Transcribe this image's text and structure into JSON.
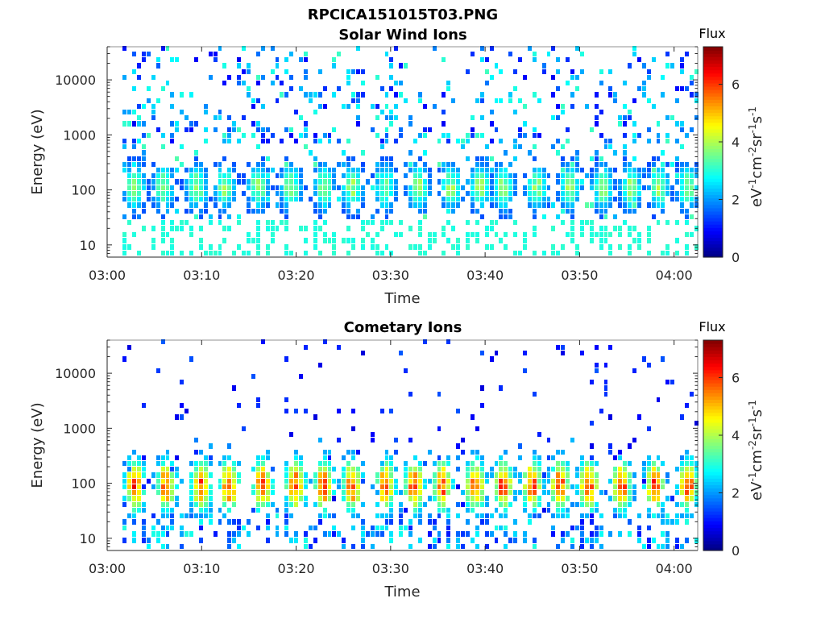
{
  "figure_title": "RPCICA151015T03.PNG",
  "chart_data": [
    {
      "type": "heatmap",
      "title": "Solar Wind Ions",
      "xlabel": "Time",
      "ylabel": "Energy (eV)",
      "x_unit": "minutes after 03:00",
      "xlim": [
        0,
        62.5
      ],
      "ylim": [
        6,
        40000
      ],
      "y_scale": "log",
      "x_ticks": [
        0,
        10,
        20,
        30,
        40,
        50,
        60
      ],
      "x_tick_labels": [
        "03:00",
        "03:10",
        "03:20",
        "03:30",
        "03:40",
        "03:50",
        "04:00"
      ],
      "y_ticks": [
        10,
        100,
        1000,
        10000
      ],
      "y_tick_labels": [
        "10",
        "100",
        "1000",
        "10000"
      ],
      "colorbar": {
        "label": "Flux",
        "unit_label": "eV-1cm-2sr-1s-1",
        "range": [
          0,
          7.3
        ],
        "ticks": [
          0,
          2,
          4,
          6
        ],
        "colormap": "jet"
      },
      "x_bins_start": 1.9,
      "x_bins_end": 62.4,
      "energy_bins": [
        7,
        9,
        12,
        15,
        20,
        25,
        32,
        41,
        52,
        66,
        85,
        108,
        138,
        176,
        224,
        286,
        365,
        465,
        593,
        756,
        964,
        1229,
        1567,
        1998,
        2547,
        3248,
        4141,
        5280,
        6732,
        8584,
        10945,
        13955,
        17793,
        22686,
        28926,
        36882
      ],
      "band_peaks": [
        3.0,
        6.0,
        9.5,
        12.5,
        16.0,
        19.5,
        23.0,
        26.0,
        29.5,
        33.0,
        36.5,
        39.5,
        42.0,
        45.5,
        49.0,
        52.5,
        55.5,
        58.5,
        61.5
      ],
      "band_center_ev": 110,
      "band_peak_flux": 4.0,
      "high_energy_flux_range": [
        0.8,
        3.2
      ],
      "low_energy_flux_range": [
        2.9,
        3.1
      ]
    },
    {
      "type": "heatmap",
      "title": "Cometary Ions",
      "xlabel": "Time",
      "ylabel": "Energy (eV)",
      "x_unit": "minutes after 03:00",
      "xlim": [
        0,
        62.5
      ],
      "ylim": [
        6,
        40000
      ],
      "y_scale": "log",
      "x_ticks": [
        0,
        10,
        20,
        30,
        40,
        50,
        60
      ],
      "x_tick_labels": [
        "03:00",
        "03:10",
        "03:20",
        "03:30",
        "03:40",
        "03:50",
        "04:00"
      ],
      "y_ticks": [
        10,
        100,
        1000,
        10000
      ],
      "y_tick_labels": [
        "10",
        "100",
        "1000",
        "10000"
      ],
      "colorbar": {
        "label": "Flux",
        "unit_label": "eV-1cm-2sr-1s-1",
        "range": [
          0,
          7.3
        ],
        "ticks": [
          0,
          2,
          4,
          6
        ],
        "colormap": "jet"
      },
      "x_bins_start": 1.9,
      "x_bins_end": 62.4,
      "energy_bins": [
        7,
        9,
        12,
        15,
        20,
        25,
        32,
        41,
        52,
        66,
        85,
        108,
        138,
        176,
        224,
        286,
        365,
        465,
        593,
        756,
        964,
        1229,
        1567,
        1998,
        2547,
        3248,
        4141,
        5280,
        6732,
        8584,
        10945,
        13955,
        17793,
        22686,
        28926,
        36882
      ],
      "band_peaks": [
        3.0,
        6.3,
        10.0,
        13.0,
        16.5,
        20.0,
        23.0,
        26.0,
        29.5,
        32.5,
        35.5,
        39.0,
        42.0,
        45.0,
        48.0,
        51.0,
        54.5,
        58.0,
        61.5
      ],
      "band_center_ev": 90,
      "band_peak_flux": 6.3,
      "high_energy_flux_range": [
        0.6,
        1.6
      ],
      "low_energy_flux_range": [
        1.0,
        3.0
      ]
    }
  ]
}
